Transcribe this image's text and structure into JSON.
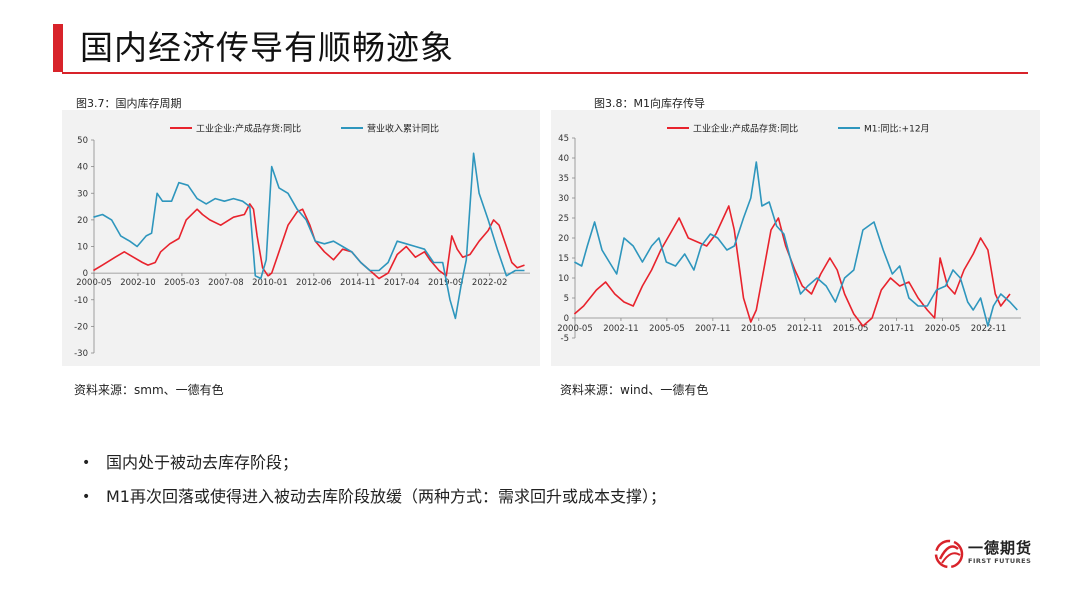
{
  "page": {
    "title": "国内经济传导有顺畅迹象"
  },
  "colors": {
    "accent": "#d8232a",
    "red_series": "#e8232d",
    "blue_series": "#2e96bd",
    "panel_bg": "#f2f2f2"
  },
  "figures": [
    {
      "caption": "图3.7：国内库存周期",
      "source": "资料来源：smm、一德有色"
    },
    {
      "caption": "图3.8：M1向库存传导",
      "source": "资料来源：wind、一德有色"
    }
  ],
  "bullets": [
    "国内处于被动去库存阶段；",
    "M1再次回落或使得进入被动去库阶段放缓（两种方式：需求回升或成本支撑）；"
  ],
  "logo": {
    "name_cn": "一德期货",
    "name_en": "FIRST FUTURES",
    "icon": "swirl-logo-icon"
  },
  "chart_data": [
    {
      "type": "line",
      "x_ticks": [
        "2000-05",
        "2002-10",
        "2005-03",
        "2007-08",
        "2010-01",
        "2012-06",
        "2014-11",
        "2017-04",
        "2019-09",
        "2022-02"
      ],
      "y_ticks": [
        "50",
        "40",
        "30",
        "20",
        "10",
        "0",
        "-10",
        "-20",
        "-30"
      ],
      "ylim": [
        -30,
        50
      ],
      "legend_position": "top",
      "series": [
        {
          "name": "工业企业:产成品存货:同比",
          "color": "#e8232d",
          "points": [
            [
              2000.3,
              1
            ],
            [
              2000.8,
              3
            ],
            [
              2001.5,
              6
            ],
            [
              2002.0,
              8
            ],
            [
              2002.5,
              6
            ],
            [
              2003.0,
              4
            ],
            [
              2003.3,
              3
            ],
            [
              2003.7,
              4
            ],
            [
              2004.0,
              8
            ],
            [
              2004.5,
              11
            ],
            [
              2005.0,
              13
            ],
            [
              2005.4,
              20
            ],
            [
              2006.0,
              24
            ],
            [
              2006.3,
              22
            ],
            [
              2006.7,
              20
            ],
            [
              2007.3,
              18
            ],
            [
              2008.0,
              21
            ],
            [
              2008.6,
              22
            ],
            [
              2008.9,
              26
            ],
            [
              2009.1,
              24
            ],
            [
              2009.3,
              14
            ],
            [
              2009.6,
              2
            ],
            [
              2009.9,
              -1
            ],
            [
              2010.1,
              0
            ],
            [
              2010.5,
              8
            ],
            [
              2011.0,
              18
            ],
            [
              2011.5,
              23
            ],
            [
              2011.8,
              24
            ],
            [
              2012.2,
              18
            ],
            [
              2012.5,
              12
            ],
            [
              2013.0,
              8
            ],
            [
              2013.5,
              5
            ],
            [
              2014.0,
              9
            ],
            [
              2014.5,
              8
            ],
            [
              2015.0,
              4
            ],
            [
              2015.5,
              1
            ],
            [
              2016.0,
              -2
            ],
            [
              2016.5,
              0
            ],
            [
              2017.0,
              7
            ],
            [
              2017.5,
              10
            ],
            [
              2018.0,
              6
            ],
            [
              2018.5,
              8
            ],
            [
              2018.8,
              5
            ],
            [
              2019.3,
              1
            ],
            [
              2019.7,
              -1
            ],
            [
              2020.0,
              14
            ],
            [
              2020.3,
              9
            ],
            [
              2020.6,
              6
            ],
            [
              2021.0,
              7
            ],
            [
              2021.5,
              12
            ],
            [
              2022.0,
              16
            ],
            [
              2022.3,
              20
            ],
            [
              2022.6,
              18
            ],
            [
              2023.0,
              10
            ],
            [
              2023.3,
              4
            ],
            [
              2023.6,
              2
            ],
            [
              2024.0,
              3
            ]
          ]
        },
        {
          "name": "营业收入累计同比",
          "color": "#2e96bd",
          "points": [
            [
              2000.3,
              21
            ],
            [
              2000.8,
              22
            ],
            [
              2001.3,
              20
            ],
            [
              2001.8,
              14
            ],
            [
              2002.3,
              12
            ],
            [
              2002.7,
              10
            ],
            [
              2003.2,
              14
            ],
            [
              2003.5,
              15
            ],
            [
              2003.8,
              30
            ],
            [
              2004.1,
              27
            ],
            [
              2004.6,
              27
            ],
            [
              2005.0,
              34
            ],
            [
              2005.5,
              33
            ],
            [
              2006.0,
              28
            ],
            [
              2006.5,
              26
            ],
            [
              2007.0,
              28
            ],
            [
              2007.5,
              27
            ],
            [
              2008.0,
              28
            ],
            [
              2008.5,
              27
            ],
            [
              2008.9,
              25
            ],
            [
              2009.2,
              -1
            ],
            [
              2009.5,
              -2
            ],
            [
              2009.8,
              5
            ],
            [
              2010.1,
              40
            ],
            [
              2010.5,
              32
            ],
            [
              2011.0,
              30
            ],
            [
              2011.5,
              24
            ],
            [
              2012.0,
              20
            ],
            [
              2012.5,
              12
            ],
            [
              2013.0,
              11
            ],
            [
              2013.5,
              12
            ],
            [
              2014.0,
              10
            ],
            [
              2014.5,
              8
            ],
            [
              2015.0,
              4
            ],
            [
              2015.5,
              1
            ],
            [
              2016.0,
              1
            ],
            [
              2016.5,
              4
            ],
            [
              2017.0,
              12
            ],
            [
              2017.5,
              11
            ],
            [
              2018.0,
              10
            ],
            [
              2018.5,
              9
            ],
            [
              2019.0,
              4
            ],
            [
              2019.5,
              4
            ],
            [
              2019.9,
              -10
            ],
            [
              2020.2,
              -17
            ],
            [
              2020.5,
              -5
            ],
            [
              2020.8,
              5
            ],
            [
              2021.2,
              45
            ],
            [
              2021.5,
              30
            ],
            [
              2022.0,
              20
            ],
            [
              2022.5,
              9
            ],
            [
              2023.0,
              -1
            ],
            [
              2023.5,
              1
            ],
            [
              2024.0,
              1
            ]
          ]
        }
      ]
    },
    {
      "type": "line",
      "x_ticks": [
        "2000-05",
        "2002-11",
        "2005-05",
        "2007-11",
        "2010-05",
        "2012-11",
        "2015-05",
        "2017-11",
        "2020-05",
        "2022-11"
      ],
      "y_ticks": [
        "45",
        "40",
        "35",
        "30",
        "25",
        "20",
        "15",
        "10",
        "5",
        "0",
        "-5"
      ],
      "ylim": [
        -5,
        45
      ],
      "legend_position": "top",
      "series": [
        {
          "name": "工业企业:产成品存货:同比",
          "color": "#e8232d",
          "points": [
            [
              2000.3,
              1
            ],
            [
              2000.8,
              3
            ],
            [
              2001.5,
              7
            ],
            [
              2002.0,
              9
            ],
            [
              2002.5,
              6
            ],
            [
              2003.0,
              4
            ],
            [
              2003.5,
              3
            ],
            [
              2004.0,
              8
            ],
            [
              2004.5,
              12
            ],
            [
              2005.0,
              17
            ],
            [
              2005.5,
              21
            ],
            [
              2006.0,
              25
            ],
            [
              2006.5,
              20
            ],
            [
              2007.0,
              19
            ],
            [
              2007.5,
              18
            ],
            [
              2008.0,
              21
            ],
            [
              2008.7,
              28
            ],
            [
              2009.0,
              22
            ],
            [
              2009.5,
              5
            ],
            [
              2009.9,
              -1
            ],
            [
              2010.2,
              2
            ],
            [
              2010.6,
              12
            ],
            [
              2011.0,
              22
            ],
            [
              2011.4,
              25
            ],
            [
              2011.8,
              18
            ],
            [
              2012.3,
              12
            ],
            [
              2012.7,
              8
            ],
            [
              2013.2,
              6
            ],
            [
              2013.7,
              11
            ],
            [
              2014.2,
              15
            ],
            [
              2014.6,
              12
            ],
            [
              2015.0,
              6
            ],
            [
              2015.5,
              1
            ],
            [
              2016.0,
              -2
            ],
            [
              2016.5,
              0
            ],
            [
              2017.0,
              7
            ],
            [
              2017.5,
              10
            ],
            [
              2018.0,
              8
            ],
            [
              2018.5,
              9
            ],
            [
              2019.0,
              5
            ],
            [
              2019.5,
              2
            ],
            [
              2019.9,
              0
            ],
            [
              2020.2,
              15
            ],
            [
              2020.6,
              8
            ],
            [
              2021.0,
              6
            ],
            [
              2021.5,
              12
            ],
            [
              2022.0,
              16
            ],
            [
              2022.4,
              20
            ],
            [
              2022.8,
              17
            ],
            [
              2023.2,
              6
            ],
            [
              2023.5,
              3
            ],
            [
              2024.0,
              6
            ]
          ]
        },
        {
          "name": "M1:同比:+12月",
          "color": "#2e96bd",
          "points": [
            [
              2000.3,
              14
            ],
            [
              2000.7,
              13
            ],
            [
              2001.0,
              18
            ],
            [
              2001.4,
              24
            ],
            [
              2001.8,
              17
            ],
            [
              2002.2,
              14
            ],
            [
              2002.6,
              11
            ],
            [
              2003.0,
              20
            ],
            [
              2003.5,
              18
            ],
            [
              2004.0,
              14
            ],
            [
              2004.5,
              18
            ],
            [
              2004.9,
              20
            ],
            [
              2005.3,
              14
            ],
            [
              2005.8,
              13
            ],
            [
              2006.3,
              16
            ],
            [
              2006.8,
              12
            ],
            [
              2007.2,
              18
            ],
            [
              2007.7,
              21
            ],
            [
              2008.1,
              20
            ],
            [
              2008.6,
              17
            ],
            [
              2009.0,
              18
            ],
            [
              2009.5,
              25
            ],
            [
              2009.9,
              30
            ],
            [
              2010.2,
              39
            ],
            [
              2010.5,
              28
            ],
            [
              2010.9,
              29
            ],
            [
              2011.3,
              23
            ],
            [
              2011.7,
              21
            ],
            [
              2012.1,
              14
            ],
            [
              2012.6,
              6
            ],
            [
              2013.0,
              8
            ],
            [
              2013.5,
              10
            ],
            [
              2014.0,
              8
            ],
            [
              2014.5,
              4
            ],
            [
              2015.0,
              10
            ],
            [
              2015.5,
              12
            ],
            [
              2016.0,
              22
            ],
            [
              2016.6,
              24
            ],
            [
              2017.1,
              17
            ],
            [
              2017.6,
              11
            ],
            [
              2018.0,
              13
            ],
            [
              2018.5,
              5
            ],
            [
              2019.0,
              3
            ],
            [
              2019.5,
              3
            ],
            [
              2020.0,
              7
            ],
            [
              2020.5,
              8
            ],
            [
              2020.9,
              12
            ],
            [
              2021.3,
              10
            ],
            [
              2021.7,
              4
            ],
            [
              2022.0,
              2
            ],
            [
              2022.4,
              5
            ],
            [
              2022.8,
              -2
            ],
            [
              2023.1,
              3
            ],
            [
              2023.5,
              6
            ],
            [
              2024.0,
              4
            ],
            [
              2024.4,
              2
            ]
          ]
        }
      ]
    }
  ]
}
